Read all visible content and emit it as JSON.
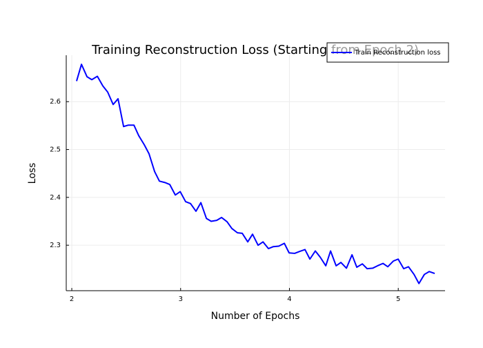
{
  "chart_data": {
    "type": "line",
    "title": "Training Reconstruction Loss (Starting from Epoch 2)",
    "x_label": "Number of Epochs",
    "y_label": "Loss",
    "x": [
      2.044,
      2.089,
      2.14,
      2.184,
      2.235,
      2.285,
      2.33,
      2.38,
      2.425,
      2.476,
      2.52,
      2.571,
      2.615,
      2.666,
      2.71,
      2.761,
      2.805,
      2.856,
      2.9,
      2.951,
      2.996,
      3.046,
      3.091,
      3.141,
      3.186,
      3.237,
      3.281,
      3.332,
      3.376,
      3.427,
      3.471,
      3.522,
      3.566,
      3.617,
      3.661,
      3.712,
      3.757,
      3.807,
      3.852,
      3.902,
      3.953,
      3.997,
      4.048,
      4.093,
      4.143,
      4.188,
      4.238,
      4.283,
      4.334,
      4.378,
      4.429,
      4.473,
      4.524,
      4.575,
      4.619,
      4.67,
      4.714,
      4.765,
      4.809,
      4.86,
      4.904,
      4.955,
      4.999,
      5.05,
      5.094,
      5.145,
      5.19,
      5.24,
      5.285,
      5.335
    ],
    "series": [
      {
        "name": "Train Reconstruction loss",
        "color": "#0000ff",
        "values": [
          2.643,
          2.678,
          2.652,
          2.646,
          2.653,
          2.633,
          2.62,
          2.594,
          2.606,
          2.548,
          2.551,
          2.551,
          2.529,
          2.51,
          2.491,
          2.454,
          2.434,
          2.431,
          2.427,
          2.405,
          2.412,
          2.391,
          2.387,
          2.371,
          2.389,
          2.356,
          2.35,
          2.352,
          2.358,
          2.349,
          2.335,
          2.326,
          2.325,
          2.307,
          2.323,
          2.3,
          2.307,
          2.293,
          2.297,
          2.298,
          2.304,
          2.284,
          2.283,
          2.287,
          2.291,
          2.271,
          2.288,
          2.275,
          2.257,
          2.288,
          2.257,
          2.264,
          2.252,
          2.28,
          2.254,
          2.261,
          2.251,
          2.252,
          2.257,
          2.262,
          2.255,
          2.267,
          2.271,
          2.251,
          2.255,
          2.239,
          2.22,
          2.239,
          2.245,
          2.241
        ]
      }
    ],
    "xlim": [
      1.949,
      5.43
    ],
    "ylim": [
      2.205,
      2.697
    ],
    "xticks": [
      2,
      3,
      4,
      5
    ],
    "yticks": [
      2.3,
      2.4,
      2.5,
      2.6
    ],
    "grid": true,
    "legend": "top-right"
  }
}
